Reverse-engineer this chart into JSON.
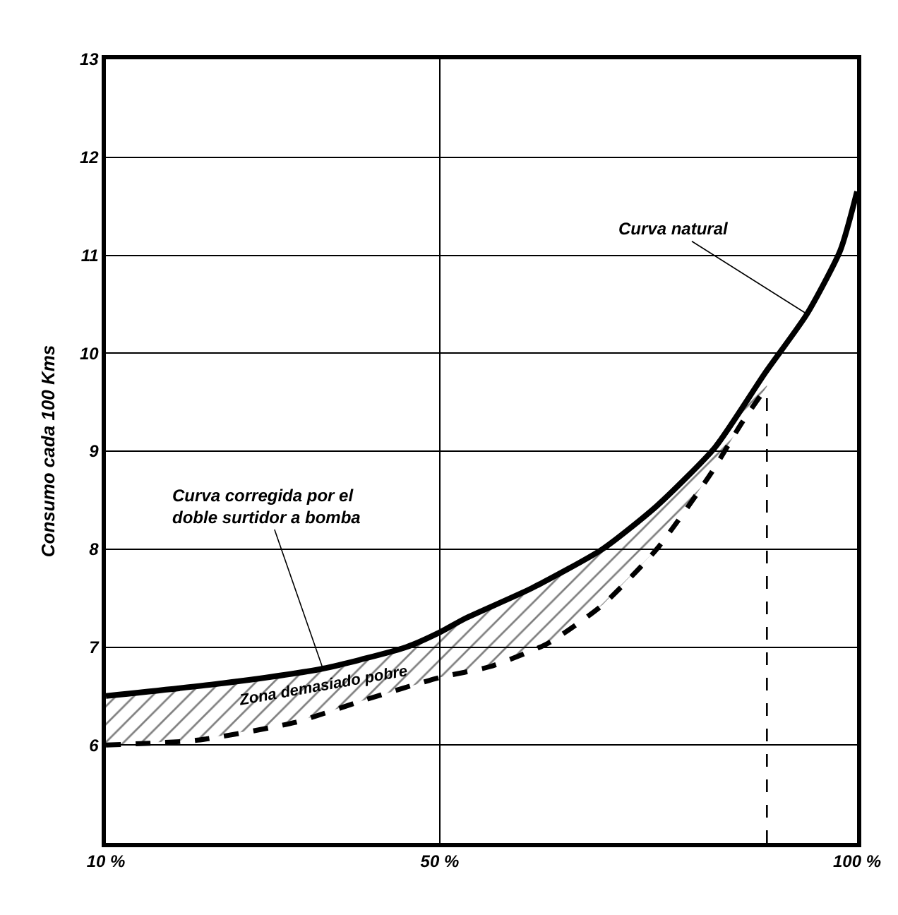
{
  "chart_data": {
    "type": "line",
    "ylabel": "Consumo cada 100 Kms",
    "xlim": [
      10,
      100
    ],
    "xticks": [
      {
        "value": 10,
        "label": "10 %"
      },
      {
        "value": 50,
        "label": "50 %"
      },
      {
        "value": 100,
        "label": "100 %"
      }
    ],
    "ylim": [
      5,
      13
    ],
    "yticks": [
      {
        "value": 5,
        "label": null
      },
      6,
      7,
      8,
      9,
      10,
      11,
      12,
      13
    ],
    "grid": true,
    "marker": "none",
    "series": [
      {
        "color": "#000000",
        "line_style": "solid",
        "x": [
          10,
          24,
          36,
          46,
          50,
          53,
          61,
          69.5,
          76,
          83,
          89,
          94,
          98,
          100
        ],
        "values": [
          6.5,
          6.63,
          6.78,
          7.0,
          7.15,
          7.29,
          7.6,
          8.0,
          8.44,
          9.04,
          9.8,
          10.4,
          11.05,
          11.65
        ]
      },
      {
        "color": "#000000",
        "line_style": "dashed",
        "x": [
          10,
          21,
          32.6,
          41,
          50,
          56,
          63,
          69.5,
          76,
          82.4,
          86.2,
          89.2
        ],
        "values": [
          6.0,
          6.05,
          6.23,
          6.46,
          6.69,
          6.8,
          7.04,
          7.43,
          8.0,
          8.76,
          9.29,
          9.66
        ],
        "lower": [
          6.0,
          6.05,
          6.23,
          6.46,
          6.69,
          6.8,
          7.04,
          7.43,
          8.0,
          8.76,
          9.29,
          9.66
        ],
        "upper": [
          6.5,
          6.6,
          6.73,
          6.9,
          7.13,
          7.4,
          7.65,
          8.0,
          8.44,
          8.95,
          9.4,
          9.8
        ]
      }
    ],
    "ref_lines": [
      {
        "axis": "x",
        "value": 89.2,
        "label": null,
        "color": "#000000",
        "line_style": "dashed"
      }
    ],
    "annotations": [
      {
        "text": "Curva natural",
        "x": 94,
        "y": 10.4
      },
      {
        "text": "Curva corregida por el\ndoble surtidor a bomba",
        "x": 36,
        "y": 6.78
      },
      "Zona demasiado pobre"
    ]
  }
}
